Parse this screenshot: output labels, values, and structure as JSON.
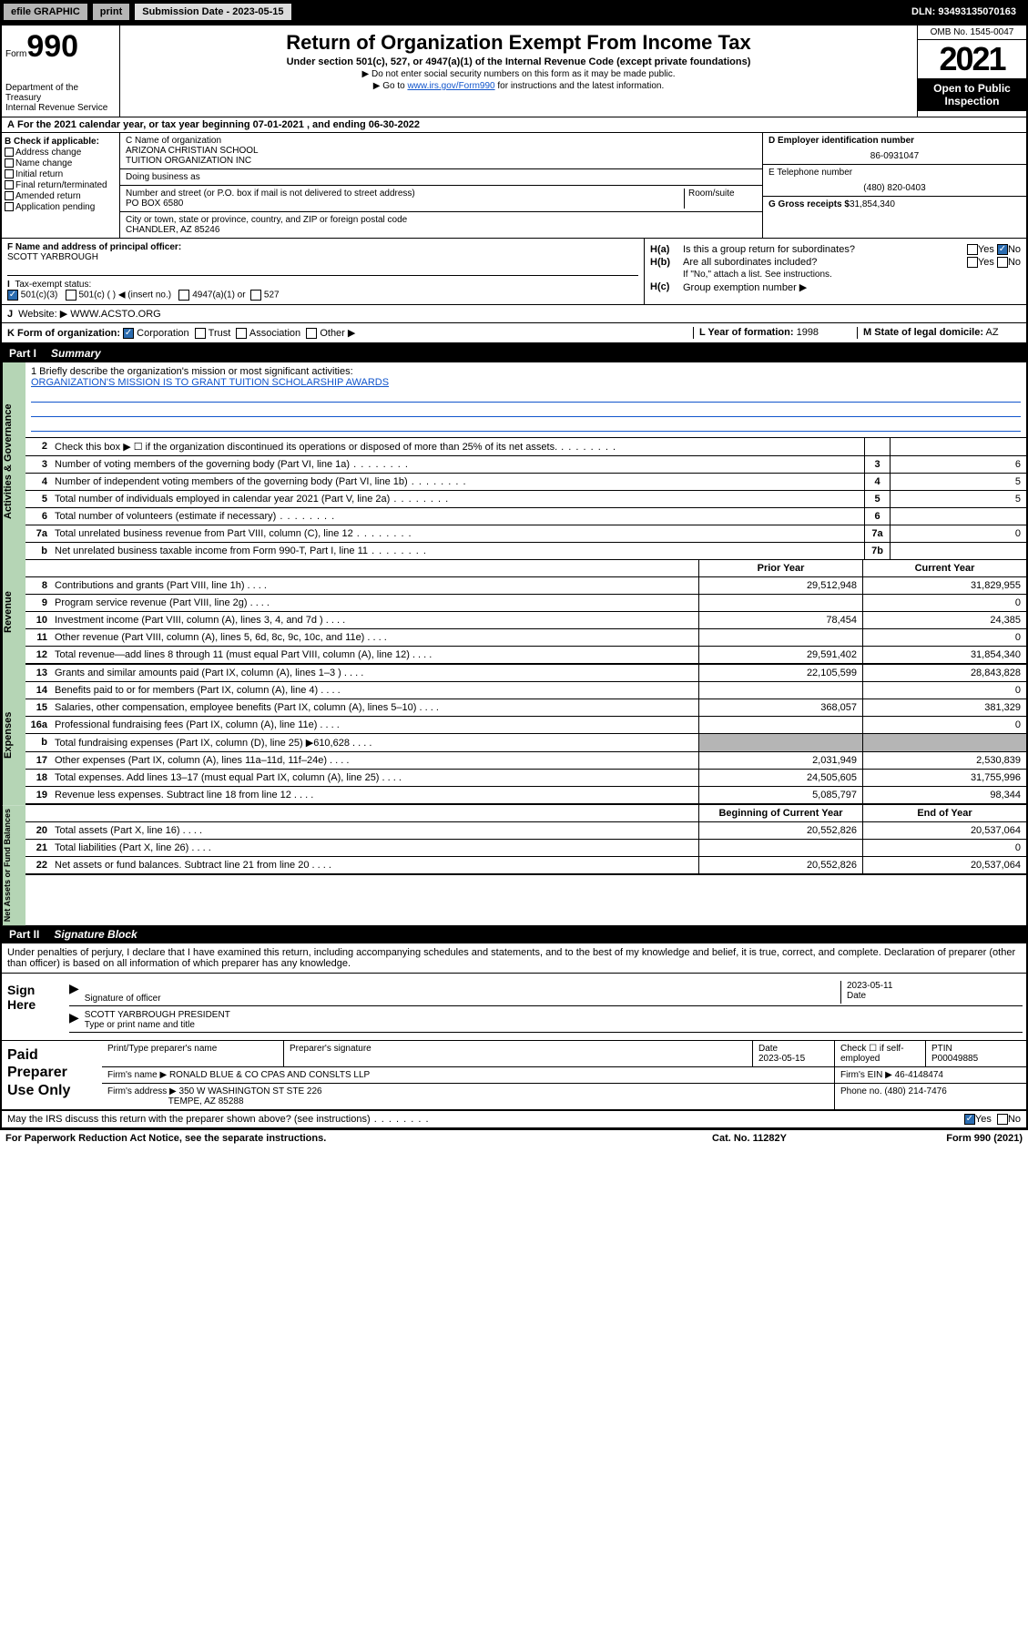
{
  "topbar": {
    "efile": "efile GRAPHIC",
    "print": "print",
    "sub_label": "Submission Date - 2023-05-15",
    "dln": "DLN: 93493135070163"
  },
  "header": {
    "form_word": "Form",
    "form_num": "990",
    "dept": "Department of the Treasury\nInternal Revenue Service",
    "title": "Return of Organization Exempt From Income Tax",
    "sub": "Under section 501(c), 527, or 4947(a)(1) of the Internal Revenue Code (except private foundations)",
    "note1": "▶ Do not enter social security numbers on this form as it may be made public.",
    "note2_pre": "▶ Go to ",
    "note2_link": "www.irs.gov/Form990",
    "note2_post": " for instructions and the latest information.",
    "omb": "OMB No. 1545-0047",
    "year": "2021",
    "open": "Open to Public Inspection"
  },
  "rowA": "For the 2021 calendar year, or tax year beginning 07-01-2021   , and ending 06-30-2022",
  "colB": {
    "title": "B Check if applicable:",
    "items": [
      "Address change",
      "Name change",
      "Initial return",
      "Final return/terminated",
      "Amended return",
      "Application pending"
    ]
  },
  "colC": {
    "name_label": "C Name of organization",
    "name": "ARIZONA CHRISTIAN SCHOOL\nTUITION ORGANIZATION INC",
    "dba": "Doing business as",
    "addr_label": "Number and street (or P.O. box if mail is not delivered to street address)",
    "room": "Room/suite",
    "addr": "PO BOX 6580",
    "city_label": "City or town, state or province, country, and ZIP or foreign postal code",
    "city": "CHANDLER, AZ  85246"
  },
  "colDE": {
    "d_label": "D Employer identification number",
    "d_val": "86-0931047",
    "e_label": "E Telephone number",
    "e_val": "(480) 820-0403",
    "g_label": "G Gross receipts $",
    "g_val": "31,854,340"
  },
  "rowF": {
    "label": "F  Name and address of principal officer:",
    "val": "SCOTT YARBROUGH"
  },
  "rowH": {
    "ha": "Is this a group return for subordinates?",
    "hb": "Are all subordinates included?",
    "hb_note": "If \"No,\" attach a list. See instructions.",
    "hc": "Group exemption number ▶"
  },
  "rowI": {
    "label": "Tax-exempt status:",
    "opt1": "501(c)(3)",
    "opt2": "501(c) (  ) ◀ (insert no.)",
    "opt3": "4947(a)(1) or",
    "opt4": "527"
  },
  "rowJ": {
    "label": "Website: ▶",
    "val": "WWW.ACSTO.ORG"
  },
  "rowK": {
    "label": "K Form of organization:",
    "opts": [
      "Corporation",
      "Trust",
      "Association",
      "Other ▶"
    ],
    "l_label": "L Year of formation:",
    "l_val": "1998",
    "m_label": "M State of legal domicile:",
    "m_val": "AZ"
  },
  "part1": {
    "num": "Part I",
    "title": "Summary"
  },
  "mission": {
    "q": "1   Briefly describe the organization's mission or most significant activities:",
    "txt": "ORGANIZATION'S MISSION IS TO GRANT TUITION SCHOLARSHIP AWARDS"
  },
  "gov_rows": [
    {
      "n": "2",
      "t": "Check this box ▶ ☐  if the organization discontinued its operations or disposed of more than 25% of its net assets.",
      "box": "",
      "val": ""
    },
    {
      "n": "3",
      "t": "Number of voting members of the governing body (Part VI, line 1a)",
      "box": "3",
      "val": "6"
    },
    {
      "n": "4",
      "t": "Number of independent voting members of the governing body (Part VI, line 1b)",
      "box": "4",
      "val": "5"
    },
    {
      "n": "5",
      "t": "Total number of individuals employed in calendar year 2021 (Part V, line 2a)",
      "box": "5",
      "val": "5"
    },
    {
      "n": "6",
      "t": "Total number of volunteers (estimate if necessary)",
      "box": "6",
      "val": ""
    },
    {
      "n": "7a",
      "t": "Total unrelated business revenue from Part VIII, column (C), line 12",
      "box": "7a",
      "val": "0"
    },
    {
      "n": "b",
      "t": "Net unrelated business taxable income from Form 990-T, Part I, line 11",
      "box": "7b",
      "val": ""
    }
  ],
  "col_hdrs": {
    "py": "Prior Year",
    "cy": "Current Year",
    "boy": "Beginning of Current Year",
    "eoy": "End of Year"
  },
  "revenue": [
    {
      "n": "8",
      "t": "Contributions and grants (Part VIII, line 1h)",
      "v1": "29,512,948",
      "v2": "31,829,955"
    },
    {
      "n": "9",
      "t": "Program service revenue (Part VIII, line 2g)",
      "v1": "",
      "v2": "0"
    },
    {
      "n": "10",
      "t": "Investment income (Part VIII, column (A), lines 3, 4, and 7d )",
      "v1": "78,454",
      "v2": "24,385"
    },
    {
      "n": "11",
      "t": "Other revenue (Part VIII, column (A), lines 5, 6d, 8c, 9c, 10c, and 11e)",
      "v1": "",
      "v2": "0"
    },
    {
      "n": "12",
      "t": "Total revenue—add lines 8 through 11 (must equal Part VIII, column (A), line 12)",
      "v1": "29,591,402",
      "v2": "31,854,340"
    }
  ],
  "expenses": [
    {
      "n": "13",
      "t": "Grants and similar amounts paid (Part IX, column (A), lines 1–3 )",
      "v1": "22,105,599",
      "v2": "28,843,828"
    },
    {
      "n": "14",
      "t": "Benefits paid to or for members (Part IX, column (A), line 4)",
      "v1": "",
      "v2": "0"
    },
    {
      "n": "15",
      "t": "Salaries, other compensation, employee benefits (Part IX, column (A), lines 5–10)",
      "v1": "368,057",
      "v2": "381,329"
    },
    {
      "n": "16a",
      "t": "Professional fundraising fees (Part IX, column (A), line 11e)",
      "v1": "",
      "v2": "0"
    },
    {
      "n": "b",
      "t": "Total fundraising expenses (Part IX, column (D), line 25) ▶610,628",
      "v1": "gray",
      "v2": "gray"
    },
    {
      "n": "17",
      "t": "Other expenses (Part IX, column (A), lines 11a–11d, 11f–24e)",
      "v1": "2,031,949",
      "v2": "2,530,839"
    },
    {
      "n": "18",
      "t": "Total expenses. Add lines 13–17 (must equal Part IX, column (A), line 25)",
      "v1": "24,505,605",
      "v2": "31,755,996"
    },
    {
      "n": "19",
      "t": "Revenue less expenses. Subtract line 18 from line 12",
      "v1": "5,085,797",
      "v2": "98,344"
    }
  ],
  "netassets": [
    {
      "n": "20",
      "t": "Total assets (Part X, line 16)",
      "v1": "20,552,826",
      "v2": "20,537,064"
    },
    {
      "n": "21",
      "t": "Total liabilities (Part X, line 26)",
      "v1": "",
      "v2": "0"
    },
    {
      "n": "22",
      "t": "Net assets or fund balances. Subtract line 21 from line 20",
      "v1": "20,552,826",
      "v2": "20,537,064"
    }
  ],
  "vtabs": {
    "gov": "Activities & Governance",
    "rev": "Revenue",
    "exp": "Expenses",
    "net": "Net Assets or Fund Balances"
  },
  "part2": {
    "num": "Part II",
    "title": "Signature Block"
  },
  "sig_intro": "Under penalties of perjury, I declare that I have examined this return, including accompanying schedules and statements, and to the best of my knowledge and belief, it is true, correct, and complete. Declaration of preparer (other than officer) is based on all information of which preparer has any knowledge.",
  "sign": {
    "here": "Sign Here",
    "sig_label": "Signature of officer",
    "date_label": "Date",
    "date": "2023-05-11",
    "name": "SCOTT YARBROUGH  PRESIDENT",
    "name_label": "Type or print name and title"
  },
  "paid": {
    "title": "Paid Preparer Use Only",
    "h1": "Print/Type preparer's name",
    "h2": "Preparer's signature",
    "h3": "Date",
    "h3v": "2023-05-15",
    "h4": "Check ☐ if self-employed",
    "h5": "PTIN",
    "h5v": "P00049885",
    "firm_name_l": "Firm's name    ▶",
    "firm_name": "RONALD BLUE & CO CPAS AND CONSLTS LLP",
    "firm_ein_l": "Firm's EIN ▶",
    "firm_ein": "46-4148474",
    "firm_addr_l": "Firm's address ▶",
    "firm_addr": "350 W WASHINGTON ST STE 226",
    "firm_city": "TEMPE, AZ  85288",
    "phone_l": "Phone no.",
    "phone": "(480) 214-7476"
  },
  "footer": {
    "discuss": "May the IRS discuss this return with the preparer shown above? (see instructions)",
    "paperwork": "For Paperwork Reduction Act Notice, see the separate instructions.",
    "cat": "Cat. No. 11282Y",
    "form": "Form 990 (2021)"
  }
}
